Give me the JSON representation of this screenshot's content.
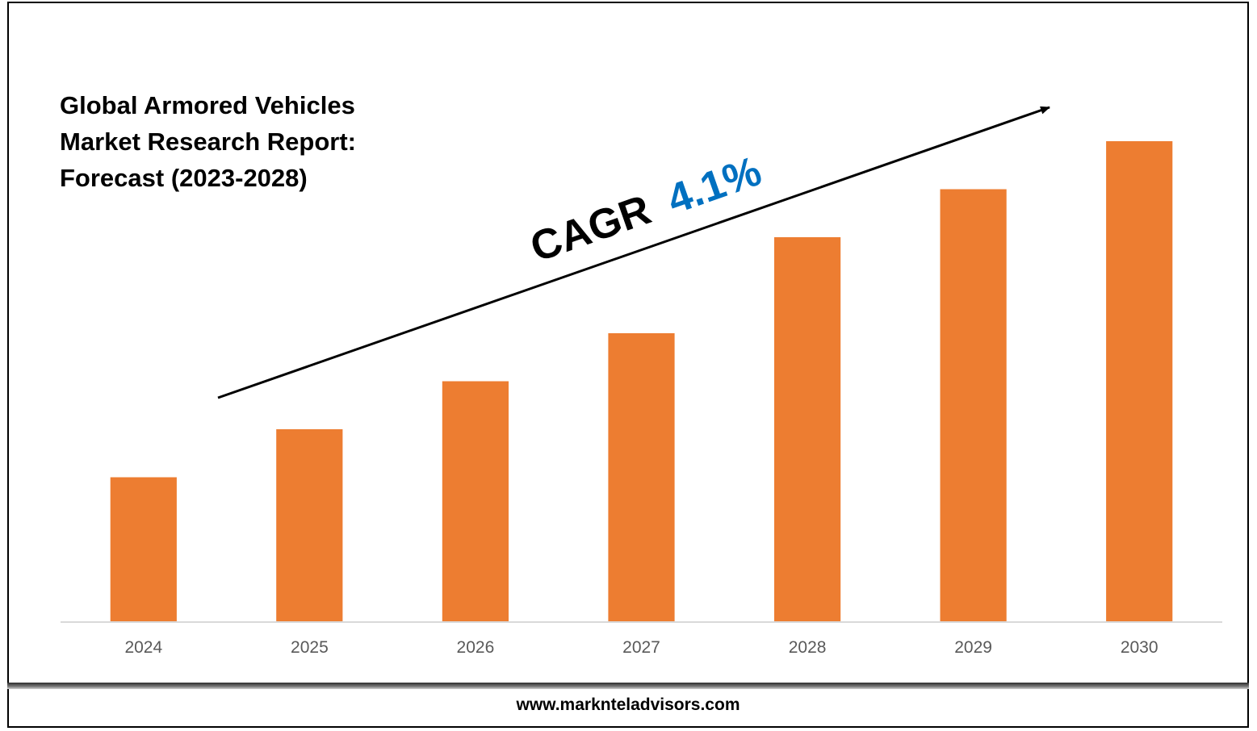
{
  "title_lines": [
    "Global Armored Vehicles",
    "Market Research Report:",
    "Forecast (2023-2028)"
  ],
  "annotation": {
    "prefix": "CAGR",
    "value": "4.1%",
    "prefix_color": "#000000",
    "value_color": "#0070C0"
  },
  "footer": {
    "url": "www.marknteladvisors.com"
  },
  "colors": {
    "bar": "#ED7D31",
    "axis": "#d9d9d9",
    "tick_text": "#595959"
  },
  "chart_data": {
    "type": "bar",
    "categories": [
      "2024",
      "2025",
      "2026",
      "2027",
      "2028",
      "2029",
      "2030"
    ],
    "values": [
      30,
      40,
      50,
      60,
      80,
      90,
      100
    ],
    "ylim": [
      0,
      100
    ],
    "y_axis_shown": false,
    "gridlines": false,
    "legend": "none",
    "trend_arrow": "increasing"
  }
}
